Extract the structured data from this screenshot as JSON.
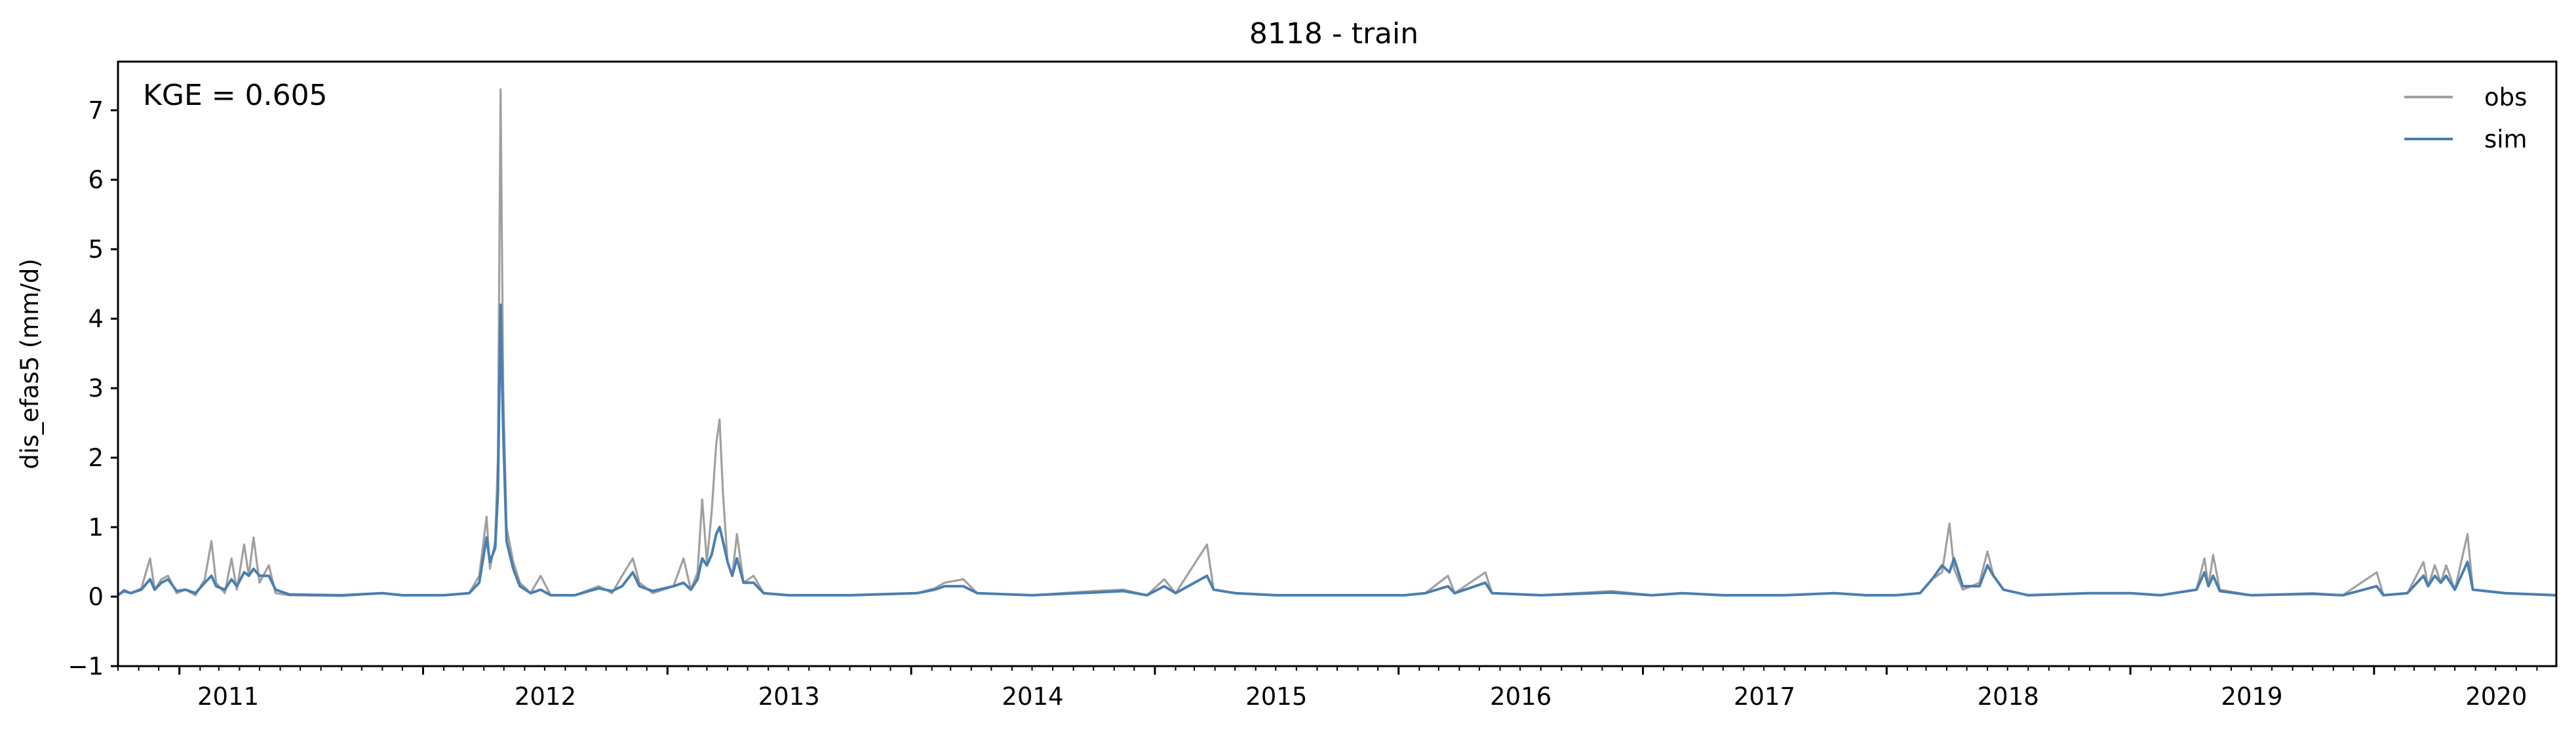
{
  "chart_data": {
    "type": "line",
    "title": "8118 - train",
    "xlabel": "",
    "ylabel": "dis_efas5 (mm/d)",
    "annotation": "KGE = 0.605",
    "xlim": [
      "2010-10-01",
      "2020-09-30"
    ],
    "ylim": [
      -1,
      7.7
    ],
    "y_ticks": [
      -1,
      0,
      1,
      2,
      3,
      4,
      5,
      6,
      7
    ],
    "y_tick_labels": [
      "−1",
      "0",
      "1",
      "2",
      "3",
      "4",
      "5",
      "6",
      "7"
    ],
    "x_ticks": [
      "2011-01-01",
      "2012-01-01",
      "2013-01-01",
      "2014-01-01",
      "2015-01-01",
      "2016-01-01",
      "2017-01-01",
      "2018-01-01",
      "2019-01-01",
      "2020-01-01"
    ],
    "x_tick_labels": [
      "2011",
      "2012",
      "2013",
      "2014",
      "2015",
      "2016",
      "2017",
      "2018",
      "2019",
      "2020"
    ],
    "grid": false,
    "legend_position": "top-right",
    "series": [
      {
        "name": "obs",
        "color": "#a0a0a0",
        "points": [
          [
            "2010-10-01",
            0.02
          ],
          [
            "2010-10-10",
            0.1
          ],
          [
            "2010-10-20",
            0.05
          ],
          [
            "2010-11-05",
            0.12
          ],
          [
            "2010-11-18",
            0.55
          ],
          [
            "2010-11-25",
            0.1
          ],
          [
            "2010-12-05",
            0.25
          ],
          [
            "2010-12-15",
            0.3
          ],
          [
            "2010-12-28",
            0.05
          ],
          [
            "2011-01-10",
            0.1
          ],
          [
            "2011-01-25",
            0.02
          ],
          [
            "2011-02-08",
            0.25
          ],
          [
            "2011-02-18",
            0.8
          ],
          [
            "2011-02-25",
            0.2
          ],
          [
            "2011-03-10",
            0.05
          ],
          [
            "2011-03-20",
            0.55
          ],
          [
            "2011-03-28",
            0.1
          ],
          [
            "2011-04-08",
            0.75
          ],
          [
            "2011-04-15",
            0.3
          ],
          [
            "2011-04-22",
            0.85
          ],
          [
            "2011-05-01",
            0.2
          ],
          [
            "2011-05-15",
            0.45
          ],
          [
            "2011-05-25",
            0.05
          ],
          [
            "2011-06-15",
            0.02
          ],
          [
            "2011-09-01",
            0.01
          ],
          [
            "2011-11-01",
            0.05
          ],
          [
            "2011-12-01",
            0.02
          ],
          [
            "2012-02-01",
            0.02
          ],
          [
            "2012-03-10",
            0.05
          ],
          [
            "2012-03-25",
            0.3
          ],
          [
            "2012-04-05",
            1.15
          ],
          [
            "2012-04-10",
            0.4
          ],
          [
            "2012-04-18",
            0.8
          ],
          [
            "2012-04-22",
            2.0
          ],
          [
            "2012-04-26",
            7.3
          ],
          [
            "2012-04-30",
            3.0
          ],
          [
            "2012-05-05",
            1.0
          ],
          [
            "2012-05-15",
            0.5
          ],
          [
            "2012-05-25",
            0.2
          ],
          [
            "2012-06-10",
            0.05
          ],
          [
            "2012-06-25",
            0.3
          ],
          [
            "2012-07-10",
            0.02
          ],
          [
            "2012-08-15",
            0.02
          ],
          [
            "2012-09-20",
            0.15
          ],
          [
            "2012-10-10",
            0.05
          ],
          [
            "2012-10-25",
            0.3
          ],
          [
            "2012-11-10",
            0.55
          ],
          [
            "2012-11-20",
            0.2
          ],
          [
            "2012-12-10",
            0.05
          ],
          [
            "2013-01-10",
            0.15
          ],
          [
            "2013-01-25",
            0.55
          ],
          [
            "2013-02-05",
            0.1
          ],
          [
            "2013-02-15",
            0.35
          ],
          [
            "2013-02-22",
            1.4
          ],
          [
            "2013-03-01",
            0.5
          ],
          [
            "2013-03-08",
            1.2
          ],
          [
            "2013-03-15",
            2.2
          ],
          [
            "2013-03-20",
            2.55
          ],
          [
            "2013-03-25",
            1.5
          ],
          [
            "2013-04-01",
            0.5
          ],
          [
            "2013-04-08",
            0.3
          ],
          [
            "2013-04-15",
            0.9
          ],
          [
            "2013-04-25",
            0.2
          ],
          [
            "2013-05-10",
            0.3
          ],
          [
            "2013-05-25",
            0.05
          ],
          [
            "2013-07-01",
            0.02
          ],
          [
            "2013-10-01",
            0.02
          ],
          [
            "2014-01-10",
            0.05
          ],
          [
            "2014-02-05",
            0.12
          ],
          [
            "2014-02-20",
            0.2
          ],
          [
            "2014-03-20",
            0.25
          ],
          [
            "2014-04-10",
            0.05
          ],
          [
            "2014-07-01",
            0.02
          ],
          [
            "2014-10-01",
            0.08
          ],
          [
            "2014-11-15",
            0.1
          ],
          [
            "2014-12-20",
            0.02
          ],
          [
            "2015-01-15",
            0.25
          ],
          [
            "2015-02-01",
            0.05
          ],
          [
            "2015-03-20",
            0.75
          ],
          [
            "2015-03-30",
            0.1
          ],
          [
            "2015-05-01",
            0.05
          ],
          [
            "2015-07-01",
            0.02
          ],
          [
            "2015-10-01",
            0.02
          ],
          [
            "2016-01-10",
            0.02
          ],
          [
            "2016-02-10",
            0.05
          ],
          [
            "2016-03-15",
            0.3
          ],
          [
            "2016-03-25",
            0.05
          ],
          [
            "2016-05-10",
            0.35
          ],
          [
            "2016-05-20",
            0.05
          ],
          [
            "2016-08-01",
            0.02
          ],
          [
            "2016-11-15",
            0.08
          ],
          [
            "2017-01-15",
            0.02
          ],
          [
            "2017-03-01",
            0.05
          ],
          [
            "2017-05-01",
            0.02
          ],
          [
            "2017-08-01",
            0.02
          ],
          [
            "2017-10-15",
            0.05
          ],
          [
            "2017-12-01",
            0.02
          ],
          [
            "2018-01-15",
            0.02
          ],
          [
            "2018-02-20",
            0.05
          ],
          [
            "2018-03-10",
            0.25
          ],
          [
            "2018-03-25",
            0.35
          ],
          [
            "2018-04-05",
            1.05
          ],
          [
            "2018-04-12",
            0.4
          ],
          [
            "2018-04-25",
            0.1
          ],
          [
            "2018-05-20",
            0.2
          ],
          [
            "2018-06-01",
            0.65
          ],
          [
            "2018-06-10",
            0.3
          ],
          [
            "2018-06-25",
            0.1
          ],
          [
            "2018-08-01",
            0.02
          ],
          [
            "2018-11-01",
            0.05
          ],
          [
            "2019-01-01",
            0.05
          ],
          [
            "2019-02-15",
            0.02
          ],
          [
            "2019-04-10",
            0.1
          ],
          [
            "2019-04-22",
            0.55
          ],
          [
            "2019-04-28",
            0.15
          ],
          [
            "2019-05-05",
            0.6
          ],
          [
            "2019-05-15",
            0.1
          ],
          [
            "2019-07-01",
            0.02
          ],
          [
            "2019-10-01",
            0.05
          ],
          [
            "2019-11-15",
            0.02
          ],
          [
            "2020-01-05",
            0.35
          ],
          [
            "2020-01-15",
            0.02
          ],
          [
            "2020-02-20",
            0.05
          ],
          [
            "2020-03-15",
            0.5
          ],
          [
            "2020-03-22",
            0.15
          ],
          [
            "2020-04-01",
            0.45
          ],
          [
            "2020-04-10",
            0.2
          ],
          [
            "2020-04-18",
            0.45
          ],
          [
            "2020-05-01",
            0.1
          ],
          [
            "2020-05-20",
            0.9
          ],
          [
            "2020-05-28",
            0.1
          ],
          [
            "2020-07-15",
            0.05
          ],
          [
            "2020-09-30",
            0.02
          ]
        ]
      },
      {
        "name": "sim",
        "color": "#4a7fb0",
        "points": [
          [
            "2010-10-01",
            0.02
          ],
          [
            "2010-10-10",
            0.08
          ],
          [
            "2010-10-20",
            0.05
          ],
          [
            "2010-11-05",
            0.1
          ],
          [
            "2010-11-18",
            0.25
          ],
          [
            "2010-11-25",
            0.1
          ],
          [
            "2010-12-05",
            0.2
          ],
          [
            "2010-12-15",
            0.25
          ],
          [
            "2010-12-28",
            0.08
          ],
          [
            "2011-01-10",
            0.1
          ],
          [
            "2011-01-25",
            0.05
          ],
          [
            "2011-02-08",
            0.2
          ],
          [
            "2011-02-18",
            0.3
          ],
          [
            "2011-02-25",
            0.15
          ],
          [
            "2011-03-10",
            0.1
          ],
          [
            "2011-03-20",
            0.25
          ],
          [
            "2011-03-28",
            0.15
          ],
          [
            "2011-04-08",
            0.35
          ],
          [
            "2011-04-15",
            0.3
          ],
          [
            "2011-04-22",
            0.4
          ],
          [
            "2011-05-01",
            0.3
          ],
          [
            "2011-05-15",
            0.3
          ],
          [
            "2011-05-25",
            0.1
          ],
          [
            "2011-06-15",
            0.03
          ],
          [
            "2011-09-01",
            0.02
          ],
          [
            "2011-11-01",
            0.05
          ],
          [
            "2011-12-01",
            0.02
          ],
          [
            "2012-02-01",
            0.02
          ],
          [
            "2012-03-10",
            0.05
          ],
          [
            "2012-03-25",
            0.2
          ],
          [
            "2012-04-05",
            0.85
          ],
          [
            "2012-04-10",
            0.5
          ],
          [
            "2012-04-18",
            0.7
          ],
          [
            "2012-04-22",
            1.5
          ],
          [
            "2012-04-26",
            4.2
          ],
          [
            "2012-04-30",
            2.4
          ],
          [
            "2012-05-05",
            0.8
          ],
          [
            "2012-05-15",
            0.4
          ],
          [
            "2012-05-25",
            0.15
          ],
          [
            "2012-06-10",
            0.05
          ],
          [
            "2012-06-25",
            0.1
          ],
          [
            "2012-07-10",
            0.02
          ],
          [
            "2012-08-15",
            0.02
          ],
          [
            "2012-09-20",
            0.12
          ],
          [
            "2012-10-10",
            0.08
          ],
          [
            "2012-10-25",
            0.15
          ],
          [
            "2012-11-10",
            0.35
          ],
          [
            "2012-11-20",
            0.15
          ],
          [
            "2012-12-10",
            0.08
          ],
          [
            "2013-01-10",
            0.15
          ],
          [
            "2013-01-25",
            0.2
          ],
          [
            "2013-02-05",
            0.1
          ],
          [
            "2013-02-15",
            0.25
          ],
          [
            "2013-02-22",
            0.55
          ],
          [
            "2013-03-01",
            0.45
          ],
          [
            "2013-03-08",
            0.6
          ],
          [
            "2013-03-15",
            0.9
          ],
          [
            "2013-03-20",
            1.0
          ],
          [
            "2013-03-25",
            0.8
          ],
          [
            "2013-04-01",
            0.5
          ],
          [
            "2013-04-08",
            0.3
          ],
          [
            "2013-04-15",
            0.55
          ],
          [
            "2013-04-25",
            0.2
          ],
          [
            "2013-05-10",
            0.2
          ],
          [
            "2013-05-25",
            0.05
          ],
          [
            "2013-07-01",
            0.02
          ],
          [
            "2013-10-01",
            0.02
          ],
          [
            "2014-01-10",
            0.05
          ],
          [
            "2014-02-05",
            0.1
          ],
          [
            "2014-02-20",
            0.15
          ],
          [
            "2014-03-20",
            0.15
          ],
          [
            "2014-04-10",
            0.05
          ],
          [
            "2014-07-01",
            0.02
          ],
          [
            "2014-10-01",
            0.06
          ],
          [
            "2014-11-15",
            0.08
          ],
          [
            "2014-12-20",
            0.02
          ],
          [
            "2015-01-15",
            0.15
          ],
          [
            "2015-02-01",
            0.05
          ],
          [
            "2015-03-20",
            0.3
          ],
          [
            "2015-03-30",
            0.1
          ],
          [
            "2015-05-01",
            0.05
          ],
          [
            "2015-07-01",
            0.02
          ],
          [
            "2015-10-01",
            0.02
          ],
          [
            "2016-01-10",
            0.02
          ],
          [
            "2016-02-10",
            0.05
          ],
          [
            "2016-03-15",
            0.15
          ],
          [
            "2016-03-25",
            0.05
          ],
          [
            "2016-05-10",
            0.2
          ],
          [
            "2016-05-20",
            0.05
          ],
          [
            "2016-08-01",
            0.02
          ],
          [
            "2016-11-15",
            0.06
          ],
          [
            "2017-01-15",
            0.02
          ],
          [
            "2017-03-01",
            0.05
          ],
          [
            "2017-05-01",
            0.02
          ],
          [
            "2017-08-01",
            0.02
          ],
          [
            "2017-10-15",
            0.05
          ],
          [
            "2017-12-01",
            0.02
          ],
          [
            "2018-01-15",
            0.02
          ],
          [
            "2018-02-20",
            0.05
          ],
          [
            "2018-03-10",
            0.25
          ],
          [
            "2018-03-25",
            0.45
          ],
          [
            "2018-04-05",
            0.35
          ],
          [
            "2018-04-12",
            0.55
          ],
          [
            "2018-04-25",
            0.15
          ],
          [
            "2018-05-20",
            0.15
          ],
          [
            "2018-06-01",
            0.45
          ],
          [
            "2018-06-10",
            0.3
          ],
          [
            "2018-06-25",
            0.1
          ],
          [
            "2018-08-01",
            0.02
          ],
          [
            "2018-11-01",
            0.05
          ],
          [
            "2019-01-01",
            0.05
          ],
          [
            "2019-02-15",
            0.02
          ],
          [
            "2019-04-10",
            0.1
          ],
          [
            "2019-04-22",
            0.35
          ],
          [
            "2019-04-28",
            0.15
          ],
          [
            "2019-05-05",
            0.3
          ],
          [
            "2019-05-15",
            0.08
          ],
          [
            "2019-07-01",
            0.02
          ],
          [
            "2019-10-01",
            0.04
          ],
          [
            "2019-11-15",
            0.02
          ],
          [
            "2020-01-05",
            0.15
          ],
          [
            "2020-01-15",
            0.02
          ],
          [
            "2020-02-20",
            0.05
          ],
          [
            "2020-03-15",
            0.3
          ],
          [
            "2020-03-22",
            0.15
          ],
          [
            "2020-04-01",
            0.3
          ],
          [
            "2020-04-10",
            0.2
          ],
          [
            "2020-04-18",
            0.3
          ],
          [
            "2020-05-01",
            0.1
          ],
          [
            "2020-05-20",
            0.5
          ],
          [
            "2020-05-28",
            0.1
          ],
          [
            "2020-07-15",
            0.05
          ],
          [
            "2020-09-30",
            0.02
          ]
        ]
      }
    ]
  }
}
